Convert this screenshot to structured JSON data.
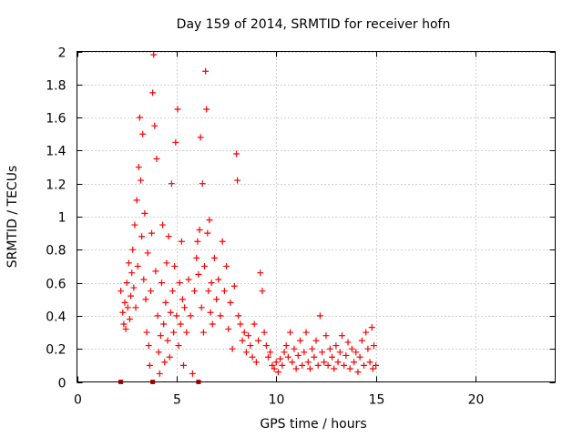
{
  "chart_data": {
    "type": "scatter",
    "title": "Day 159 of 2014, SRMTID for receiver hofn",
    "xlabel": "GPS time / hours",
    "ylabel": "SRMTID / TECUs",
    "xlim": [
      0,
      24
    ],
    "ylim": [
      0,
      2
    ],
    "xticks": [
      0,
      5,
      10,
      15,
      20
    ],
    "yticks": [
      0,
      0.2,
      0.4,
      0.6,
      0.8,
      1,
      1.2,
      1.4,
      1.6,
      1.8,
      2
    ],
    "xtick_labels": [
      "0",
      "5",
      "10",
      "15",
      "20"
    ],
    "ytick_labels": [
      "0",
      "0.2",
      "0.4",
      "0.6",
      "0.8",
      "1",
      "1.2",
      "1.4",
      "1.6",
      "1.8",
      "2"
    ],
    "grid": true,
    "series": [
      {
        "name": "SRMTID",
        "marker": "plus",
        "color": "#ff0000",
        "points": [
          [
            2.2,
            0.55
          ],
          [
            2.3,
            0.42
          ],
          [
            2.35,
            0.35
          ],
          [
            2.4,
            0.48
          ],
          [
            2.45,
            0.32
          ],
          [
            2.5,
            0.6
          ],
          [
            2.55,
            0.45
          ],
          [
            2.6,
            0.72
          ],
          [
            2.65,
            0.38
          ],
          [
            2.7,
            0.52
          ],
          [
            2.75,
            0.66
          ],
          [
            2.8,
            0.8
          ],
          [
            2.85,
            0.57
          ],
          [
            2.9,
            0.95
          ],
          [
            2.95,
            0.45
          ],
          [
            3.0,
            1.1
          ],
          [
            3.05,
            0.7
          ],
          [
            3.1,
            1.3
          ],
          [
            3.15,
            1.6
          ],
          [
            3.2,
            1.22
          ],
          [
            3.25,
            0.88
          ],
          [
            3.3,
            1.5
          ],
          [
            3.35,
            0.62
          ],
          [
            3.4,
            1.02
          ],
          [
            3.45,
            0.5
          ],
          [
            3.5,
            0.3
          ],
          [
            3.55,
            0.78
          ],
          [
            3.6,
            0.22
          ],
          [
            3.65,
            0.1
          ],
          [
            3.7,
            0.55
          ],
          [
            3.75,
            0.9
          ],
          [
            3.8,
            1.75
          ],
          [
            3.85,
            1.98
          ],
          [
            3.9,
            1.55
          ],
          [
            3.95,
            0.67
          ],
          [
            4.0,
            1.35
          ],
          [
            4.05,
            0.4
          ],
          [
            4.1,
            0.18
          ],
          [
            4.15,
            0.05
          ],
          [
            4.2,
            0.28
          ],
          [
            4.25,
            0.6
          ],
          [
            4.3,
            0.95
          ],
          [
            4.35,
            0.35
          ],
          [
            4.4,
            0.12
          ],
          [
            4.45,
            0.48
          ],
          [
            4.5,
            0.72
          ],
          [
            4.55,
            0.25
          ],
          [
            4.6,
            0.88
          ],
          [
            4.65,
            0.15
          ],
          [
            4.7,
            0.42
          ],
          [
            4.75,
            1.2
          ],
          [
            4.8,
            0.55
          ],
          [
            4.85,
            0.3
          ],
          [
            4.9,
            0.7
          ],
          [
            4.95,
            1.45
          ],
          [
            5.0,
            0.4
          ],
          [
            5.05,
            1.65
          ],
          [
            5.1,
            0.22
          ],
          [
            5.15,
            0.6
          ],
          [
            5.2,
            0.35
          ],
          [
            5.25,
            0.85
          ],
          [
            5.3,
            0.5
          ],
          [
            5.35,
            0.1
          ],
          [
            5.4,
            0.45
          ],
          [
            5.5,
            0.3
          ],
          [
            5.6,
            0.62
          ],
          [
            5.7,
            0.4
          ],
          [
            5.8,
            0.05
          ],
          [
            5.9,
            0.55
          ],
          [
            6.0,
            0.75
          ],
          [
            6.05,
            0.85
          ],
          [
            6.1,
            0.65
          ],
          [
            6.15,
            0.92
          ],
          [
            6.2,
            1.48
          ],
          [
            6.25,
            0.45
          ],
          [
            6.3,
            1.2
          ],
          [
            6.35,
            0.3
          ],
          [
            6.4,
            0.7
          ],
          [
            6.45,
            1.88
          ],
          [
            6.5,
            1.65
          ],
          [
            6.55,
            0.9
          ],
          [
            6.6,
            0.55
          ],
          [
            6.65,
            0.98
          ],
          [
            6.7,
            0.42
          ],
          [
            6.75,
            0.6
          ],
          [
            6.8,
            0.35
          ],
          [
            6.9,
            0.75
          ],
          [
            7.0,
            0.5
          ],
          [
            7.1,
            0.62
          ],
          [
            7.2,
            0.4
          ],
          [
            7.3,
            0.85
          ],
          [
            7.4,
            0.55
          ],
          [
            7.5,
            0.7
          ],
          [
            7.6,
            0.32
          ],
          [
            7.7,
            0.48
          ],
          [
            7.8,
            0.2
          ],
          [
            7.9,
            0.58
          ],
          [
            8.0,
            1.38
          ],
          [
            8.05,
            1.22
          ],
          [
            8.1,
            0.4
          ],
          [
            8.2,
            0.35
          ],
          [
            8.3,
            0.25
          ],
          [
            8.4,
            0.3
          ],
          [
            8.5,
            0.18
          ],
          [
            8.6,
            0.28
          ],
          [
            8.7,
            0.22
          ],
          [
            8.8,
            0.15
          ],
          [
            8.9,
            0.35
          ],
          [
            9.0,
            0.12
          ],
          [
            9.1,
            0.25
          ],
          [
            9.2,
            0.66
          ],
          [
            9.3,
            0.55
          ],
          [
            9.4,
            0.3
          ],
          [
            9.5,
            0.22
          ],
          [
            9.6,
            0.15
          ],
          [
            9.7,
            0.18
          ],
          [
            9.8,
            0.1
          ],
          [
            9.9,
            0.08
          ],
          [
            10.0,
            0.12
          ],
          [
            10.1,
            0.06
          ],
          [
            10.2,
            0.14
          ],
          [
            10.3,
            0.1
          ],
          [
            10.4,
            0.18
          ],
          [
            10.5,
            0.22
          ],
          [
            10.6,
            0.15
          ],
          [
            10.7,
            0.3
          ],
          [
            10.8,
            0.12
          ],
          [
            10.9,
            0.2
          ],
          [
            11.0,
            0.08
          ],
          [
            11.1,
            0.16
          ],
          [
            11.2,
            0.25
          ],
          [
            11.3,
            0.1
          ],
          [
            11.4,
            0.18
          ],
          [
            11.5,
            0.3
          ],
          [
            11.6,
            0.12
          ],
          [
            11.7,
            0.08
          ],
          [
            11.8,
            0.2
          ],
          [
            11.9,
            0.15
          ],
          [
            12.0,
            0.25
          ],
          [
            12.1,
            0.1
          ],
          [
            12.2,
            0.4
          ],
          [
            12.3,
            0.18
          ],
          [
            12.4,
            0.12
          ],
          [
            12.5,
            0.28
          ],
          [
            12.6,
            0.1
          ],
          [
            12.7,
            0.2
          ],
          [
            12.8,
            0.15
          ],
          [
            12.9,
            0.08
          ],
          [
            13.0,
            0.22
          ],
          [
            13.1,
            0.12
          ],
          [
            13.2,
            0.18
          ],
          [
            13.3,
            0.28
          ],
          [
            13.4,
            0.1
          ],
          [
            13.5,
            0.16
          ],
          [
            13.6,
            0.24
          ],
          [
            13.7,
            0.08
          ],
          [
            13.8,
            0.2
          ],
          [
            13.9,
            0.12
          ],
          [
            14.0,
            0.18
          ],
          [
            14.1,
            0.06
          ],
          [
            14.2,
            0.15
          ],
          [
            14.3,
            0.25
          ],
          [
            14.4,
            0.1
          ],
          [
            14.5,
            0.3
          ],
          [
            14.6,
            0.2
          ],
          [
            14.7,
            0.12
          ],
          [
            14.8,
            0.33
          ],
          [
            14.85,
            0.08
          ],
          [
            14.9,
            0.22
          ],
          [
            15.0,
            0.1
          ]
        ]
      }
    ],
    "markers_on_axis": {
      "marker": "square",
      "color": "#cc0000",
      "x": [
        2.2,
        3.8,
        6.1
      ],
      "y": 0
    }
  }
}
